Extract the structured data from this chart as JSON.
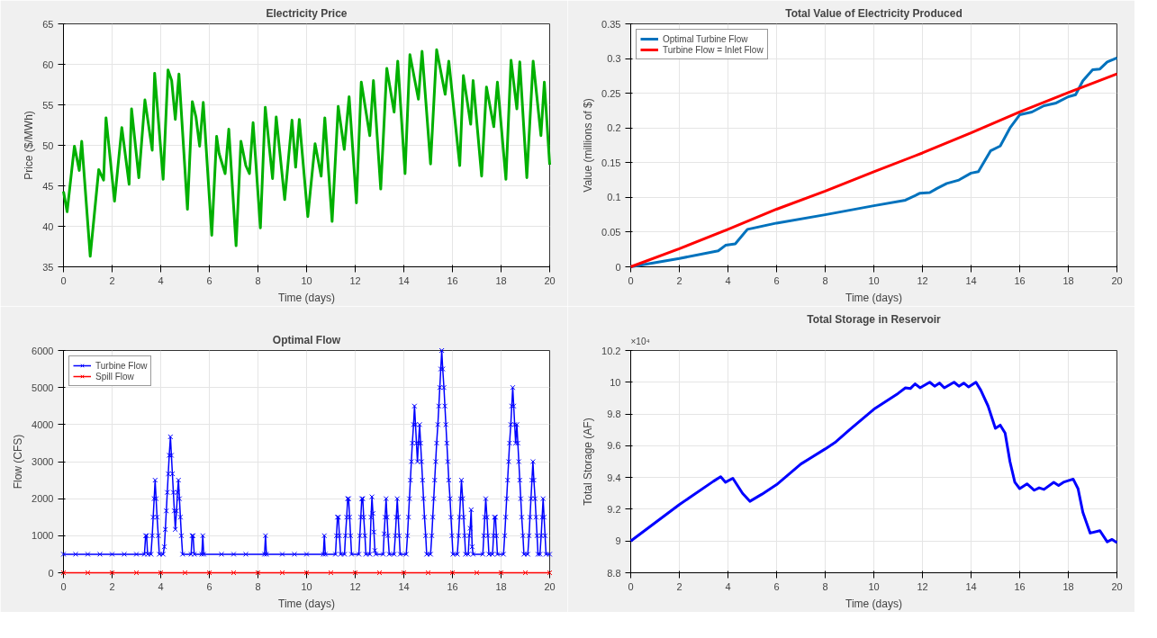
{
  "chart_data": [
    {
      "type": "line",
      "title": "Electricity Price",
      "xlabel": "Time (days)",
      "ylabel": "Price ($/MWh)",
      "xlim": [
        0,
        20
      ],
      "ylim": [
        35,
        65
      ],
      "xticks": [
        0,
        2,
        4,
        6,
        8,
        10,
        12,
        14,
        16,
        18,
        20
      ],
      "yticks": [
        35,
        40,
        45,
        50,
        55,
        60,
        65
      ],
      "grid": true,
      "legend": false,
      "series": [
        {
          "color": "#00b000",
          "x": [
            0,
            0.15,
            0.45,
            0.65,
            0.75,
            1.1,
            1.45,
            1.65,
            1.75,
            2.1,
            2.4,
            2.7,
            2.8,
            3.1,
            3.35,
            3.65,
            3.75,
            4.1,
            4.3,
            4.45,
            4.6,
            4.75,
            5.1,
            5.3,
            5.45,
            5.6,
            5.75,
            6.1,
            6.3,
            6.4,
            6.65,
            6.8,
            7.1,
            7.3,
            7.5,
            7.65,
            7.8,
            8.1,
            8.3,
            8.6,
            8.75,
            9.1,
            9.4,
            9.55,
            9.7,
            10.05,
            10.35,
            10.6,
            10.75,
            11.05,
            11.3,
            11.55,
            11.75,
            12.05,
            12.25,
            12.6,
            12.75,
            13.05,
            13.3,
            13.6,
            13.75,
            14.05,
            14.25,
            14.6,
            14.75,
            15.1,
            15.35,
            15.7,
            15.85,
            16.3,
            16.45,
            16.75,
            16.85,
            17.2,
            17.4,
            17.7,
            17.85,
            18.2,
            18.41,
            18.65,
            18.77,
            19.06,
            19.32,
            19.64,
            19.78,
            20
          ],
          "values": [
            44.3,
            41.8,
            49.9,
            46.9,
            50.5,
            36.3,
            47.0,
            45.7,
            53.4,
            43.1,
            52.2,
            45.2,
            54.5,
            46.0,
            55.6,
            49.4,
            58.9,
            45.8,
            59.3,
            58.0,
            53.2,
            58.8,
            42.1,
            55.4,
            53.5,
            49.9,
            55.3,
            38.9,
            51.1,
            49.0,
            46.5,
            52.0,
            37.6,
            50.5,
            47.5,
            46.5,
            52.8,
            39.8,
            54.7,
            45.9,
            53.5,
            43.3,
            53.1,
            47.3,
            53.2,
            41.2,
            50.2,
            46.2,
            53.4,
            40.6,
            54.8,
            49.5,
            56.0,
            42.9,
            57.8,
            51.2,
            58.0,
            44.6,
            59.5,
            54.1,
            60.4,
            46.5,
            61.2,
            55.7,
            61.6,
            47.7,
            61.8,
            56.3,
            60.4,
            47.5,
            58.6,
            52.6,
            58.0,
            46.2,
            57.2,
            52.3,
            57.8,
            45.8,
            60.5,
            54.5,
            60.3,
            46.0,
            60.4,
            51.2,
            57.8,
            47.6
          ]
        }
      ]
    },
    {
      "type": "line",
      "title": "Total Value of Electricity Produced",
      "xlabel": "Time (days)",
      "ylabel": "Value (millions of $)",
      "xlim": [
        0,
        20
      ],
      "ylim": [
        0,
        0.35
      ],
      "xticks": [
        0,
        2,
        4,
        6,
        8,
        10,
        12,
        14,
        16,
        18,
        20
      ],
      "yticks": [
        0,
        0.05,
        0.1,
        0.15,
        0.2,
        0.25,
        0.3,
        0.35
      ],
      "grid": true,
      "legend": "top left",
      "series": [
        {
          "name": "Optimal Turbine Flow",
          "color": "#0072bd",
          "x": [
            0,
            2,
            3.6,
            3.9,
            4.3,
            4.8,
            6,
            8,
            10,
            11.3,
            11.9,
            12.3,
            12.6,
            13.0,
            13.5,
            14.0,
            14.3,
            14.8,
            15.2,
            15.6,
            16.0,
            16.5,
            17,
            17.5,
            18,
            18.3,
            18.6,
            19.0,
            19.3,
            19.6,
            20
          ],
          "values": [
            0,
            0.012,
            0.023,
            0.031,
            0.033,
            0.054,
            0.063,
            0.075,
            0.088,
            0.096,
            0.106,
            0.107,
            0.113,
            0.12,
            0.125,
            0.135,
            0.137,
            0.167,
            0.174,
            0.2,
            0.219,
            0.223,
            0.232,
            0.236,
            0.245,
            0.248,
            0.268,
            0.284,
            0.285,
            0.295,
            0.301
          ]
        },
        {
          "name": "Turbine Flow = Inlet Flow",
          "color": "#ff0000",
          "x": [
            0,
            2,
            4,
            6,
            8,
            10,
            12,
            14,
            16,
            18,
            20
          ],
          "values": [
            0,
            0.026,
            0.054,
            0.083,
            0.109,
            0.137,
            0.164,
            0.193,
            0.223,
            0.251,
            0.278
          ]
        }
      ]
    },
    {
      "type": "line",
      "title": "Optimal Flow",
      "xlabel": "Time (days)",
      "ylabel": "Flow (CFS)",
      "xlim": [
        0,
        20
      ],
      "ylim": [
        0,
        6000
      ],
      "xticks": [
        0,
        2,
        4,
        6,
        8,
        10,
        12,
        14,
        16,
        18,
        20
      ],
      "yticks": [
        0,
        1000,
        2000,
        3000,
        4000,
        5000,
        6000
      ],
      "grid": true,
      "legend": "top left",
      "marker": "cross",
      "series": [
        {
          "name": "Turbine Flow",
          "color": "#0000ff",
          "x": [
            0,
            0.5,
            1,
            1.5,
            2,
            2.5,
            3,
            3.33,
            3.38,
            3.42,
            3.46,
            3.6,
            3.65,
            3.69,
            3.73,
            3.77,
            3.81,
            3.85,
            3.9,
            3.94,
            4.1,
            4.15,
            4.19,
            4.23,
            4.27,
            4.31,
            4.35,
            4.4,
            4.44,
            4.48,
            4.52,
            4.56,
            4.6,
            4.65,
            4.69,
            4.73,
            4.77,
            4.81,
            4.85,
            4.9,
            5.25,
            5.29,
            5.33,
            5.38,
            5.69,
            5.73,
            5.77,
            6.5,
            7,
            7.5,
            8.27,
            8.31,
            8.35,
            9,
            9.5,
            10,
            10.69,
            10.73,
            10.77,
            11.19,
            11.23,
            11.27,
            11.31,
            11.35,
            11.4,
            11.56,
            11.6,
            11.65,
            11.69,
            11.73,
            11.77,
            11.81,
            11.85,
            12.15,
            12.19,
            12.23,
            12.27,
            12.31,
            12.35,
            12.4,
            12.44,
            12.6,
            12.65,
            12.69,
            12.73,
            12.77,
            12.81,
            12.85,
            13.15,
            13.19,
            13.23,
            13.27,
            13.31,
            13.35,
            13.4,
            13.6,
            13.65,
            13.69,
            13.73,
            13.77,
            13.81,
            13.85,
            14.1,
            14.15,
            14.19,
            14.23,
            14.27,
            14.31,
            14.35,
            14.4,
            14.44,
            14.48,
            14.52,
            14.56,
            14.6,
            14.65,
            14.69,
            14.73,
            14.77,
            14.81,
            14.85,
            14.9,
            14.94,
            15.1,
            15.15,
            15.19,
            15.23,
            15.27,
            15.31,
            15.35,
            15.4,
            15.44,
            15.48,
            15.52,
            15.56,
            15.6,
            15.65,
            15.69,
            15.73,
            15.77,
            15.81,
            15.85,
            15.9,
            15.94,
            15.98,
            16.02,
            16.2,
            16.25,
            16.29,
            16.33,
            16.37,
            16.42,
            16.46,
            16.5,
            16.54,
            16.65,
            16.69,
            16.73,
            16.77,
            16.81,
            16.85,
            17.25,
            17.29,
            17.33,
            17.37,
            17.42,
            17.46,
            17.5,
            17.65,
            17.69,
            17.73,
            17.77,
            17.81,
            17.85,
            18.1,
            18.15,
            18.19,
            18.23,
            18.27,
            18.31,
            18.35,
            18.4,
            18.44,
            18.48,
            18.52,
            18.56,
            18.6,
            18.65,
            18.69,
            18.73,
            18.77,
            18.81,
            18.85,
            18.9,
            18.94,
            19.1,
            19.15,
            19.19,
            19.23,
            19.27,
            19.31,
            19.35,
            19.4,
            19.44,
            19.48,
            19.52,
            19.6,
            19.65,
            19.69,
            19.73,
            19.77,
            19.81,
            19.85,
            20
          ],
          "values": [
            500,
            500,
            500,
            500,
            500,
            500,
            500,
            500,
            1000,
            1000,
            500,
            500,
            1000,
            1500,
            2000,
            2500,
            2000,
            1500,
            1000,
            500,
            500,
            700,
            1170,
            1670,
            2170,
            2670,
            3170,
            3670,
            3170,
            2670,
            2170,
            1670,
            1170,
            1670,
            2170,
            2500,
            2000,
            1500,
            1000,
            500,
            500,
            1000,
            1000,
            500,
            500,
            1000,
            500,
            500,
            500,
            500,
            500,
            1000,
            500,
            500,
            500,
            500,
            500,
            1000,
            500,
            500,
            1000,
            1500,
            1500,
            1000,
            500,
            500,
            1000,
            1500,
            2000,
            2000,
            1500,
            1000,
            500,
            500,
            1000,
            1500,
            2000,
            2000,
            1500,
            1000,
            500,
            500,
            1500,
            2050,
            1600,
            1100,
            600,
            500,
            500,
            1050,
            1500,
            2000,
            1500,
            1000,
            500,
            500,
            1000,
            1500,
            2000,
            1500,
            1000,
            500,
            500,
            1000,
            1500,
            2000,
            2500,
            3000,
            3500,
            4000,
            4500,
            4000,
            3500,
            3000,
            3500,
            4000,
            3500,
            3000,
            2500,
            2000,
            1500,
            1000,
            500,
            500,
            1000,
            1500,
            2000,
            2500,
            3000,
            3500,
            4000,
            4500,
            5000,
            5500,
            6000,
            5500,
            5000,
            4500,
            4000,
            3500,
            3000,
            2500,
            2000,
            1500,
            1000,
            500,
            500,
            1000,
            1500,
            2000,
            2500,
            2000,
            1500,
            1000,
            500,
            500,
            1000,
            1200,
            1700,
            700,
            500,
            500,
            1000,
            1500,
            2000,
            1500,
            1000,
            500,
            500,
            1000,
            1500,
            1500,
            1000,
            500,
            500,
            1000,
            1500,
            2000,
            2500,
            3000,
            3500,
            4000,
            4500,
            5000,
            4500,
            4000,
            3500,
            4000,
            3500,
            3000,
            2500,
            2000,
            1500,
            1000,
            500,
            500,
            1000,
            1500,
            2000,
            2500,
            3000,
            2500,
            2000,
            1500,
            1000,
            500,
            500,
            1000,
            1500,
            2000,
            1500,
            1000,
            500,
            500
          ]
        },
        {
          "name": "Spill Flow",
          "color": "#ff0000",
          "x": [
            0,
            1,
            2,
            3,
            4,
            5,
            6,
            7,
            8,
            9,
            10,
            11,
            12,
            13,
            14,
            15,
            16,
            17,
            18,
            19,
            20
          ],
          "values": [
            0,
            0,
            0,
            0,
            0,
            0,
            0,
            0,
            0,
            0,
            0,
            0,
            0,
            0,
            0,
            0,
            0,
            0,
            0,
            0,
            0
          ]
        }
      ]
    },
    {
      "type": "line",
      "title": "Total Storage in Reservoir",
      "xlabel": "Time (days)",
      "ylabel": "Total Storage (AF)",
      "annotations": [
        "×10⁴"
      ],
      "xlim": [
        0,
        20
      ],
      "ylim": [
        8.8,
        10.2
      ],
      "xticks": [
        0,
        2,
        4,
        6,
        8,
        10,
        12,
        14,
        16,
        18,
        20
      ],
      "yticks": [
        8.8,
        9,
        9.2,
        9.4,
        9.6,
        9.8,
        10,
        10.2
      ],
      "grid": true,
      "legend": false,
      "series": [
        {
          "color": "#0000ff",
          "x": [
            0,
            2,
            3.4,
            3.7,
            3.9,
            4.2,
            4.6,
            4.9,
            5.4,
            6,
            7,
            8,
            8.4,
            9,
            10,
            11,
            11.3,
            11.5,
            11.7,
            11.9,
            12.3,
            12.5,
            12.7,
            12.9,
            13.3,
            13.5,
            13.7,
            13.9,
            14.2,
            14.4,
            14.7,
            15.0,
            15.2,
            15.4,
            15.6,
            15.8,
            16.0,
            16.3,
            16.6,
            16.8,
            17.0,
            17.4,
            17.6,
            17.8,
            18.2,
            18.4,
            18.6,
            18.9,
            19.3,
            19.6,
            19.8,
            20
          ],
          "values": [
            9.0,
            9.229,
            9.376,
            9.405,
            9.37,
            9.395,
            9.3,
            9.25,
            9.295,
            9.355,
            9.485,
            9.58,
            9.62,
            9.7,
            9.83,
            9.93,
            9.965,
            9.96,
            9.99,
            9.965,
            10.0,
            9.975,
            9.995,
            9.965,
            10.0,
            9.975,
            9.995,
            9.97,
            10.0,
            9.95,
            9.85,
            9.71,
            9.73,
            9.68,
            9.5,
            9.37,
            9.33,
            9.36,
            9.32,
            9.335,
            9.325,
            9.37,
            9.35,
            9.37,
            9.39,
            9.33,
            9.18,
            9.05,
            9.065,
            8.995,
            9.01,
            8.99
          ]
        }
      ]
    }
  ]
}
